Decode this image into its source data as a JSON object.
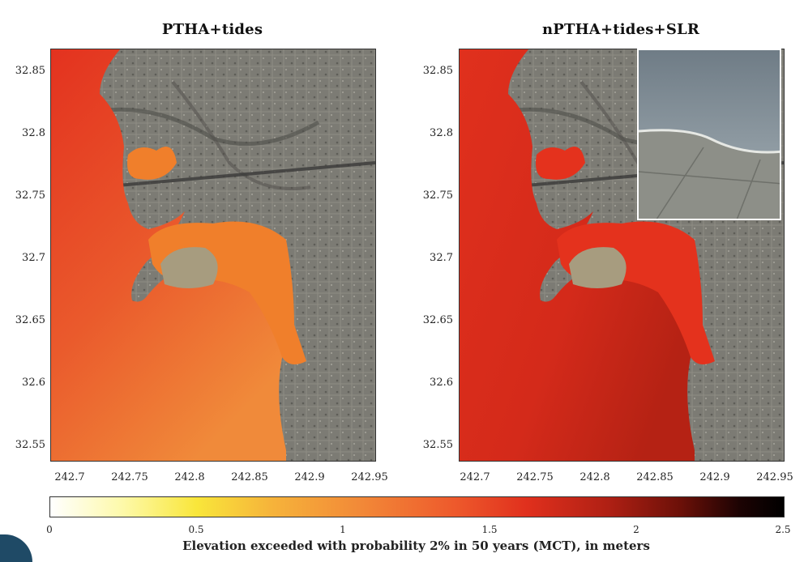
{
  "panels": [
    {
      "title": "PTHA+tides"
    },
    {
      "title": "nPTHA+tides+SLR"
    }
  ],
  "y_ticks": [
    "32.85",
    "32.8",
    "32.75",
    "32.7",
    "32.65",
    "32.6",
    "32.55"
  ],
  "x_ticks": [
    "242.7",
    "242.75",
    "242.8",
    "242.85",
    "242.9",
    "242.95"
  ],
  "colorbar": {
    "ticks": [
      "0",
      "0.5",
      "1",
      "1.5",
      "2",
      "2.5"
    ],
    "range": [
      0,
      2.5
    ],
    "label": "Elevation exceeded with probability 2% in 50 years (MCT), in meters",
    "colormap": "hot-reversed"
  },
  "colors": {
    "ocean_left_near": "#e3321f",
    "ocean_left_far": "#f08a3a",
    "ocean_right": "#e0301d",
    "inundation_left": "#f07f2b",
    "inundation_right": "#e4321d",
    "land": "#7c7b74"
  }
}
